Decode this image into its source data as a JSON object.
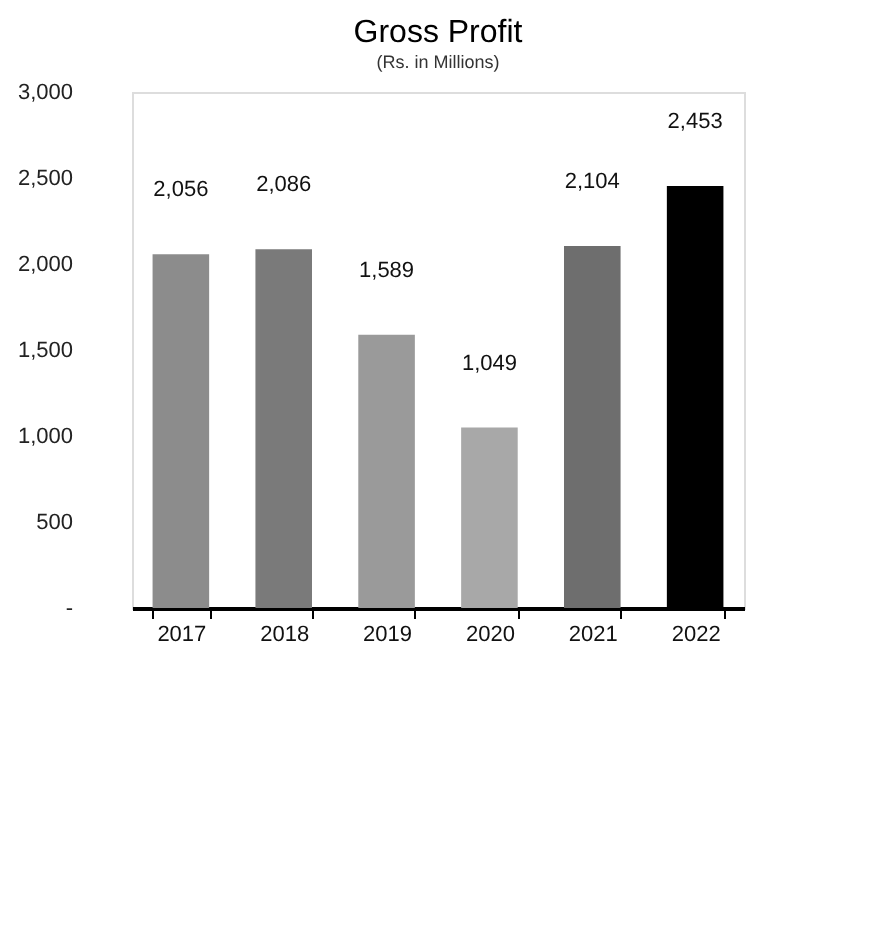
{
  "chart_data": {
    "type": "bar",
    "title": "Gross Profit",
    "subtitle": "(Rs. in Millions)",
    "categories": [
      "2017",
      "2018",
      "2019",
      "2020",
      "2021",
      "2022"
    ],
    "values": [
      2056,
      2086,
      1589,
      1049,
      2104,
      2453
    ],
    "colors": [
      "#8c8c8c",
      "#7a7a7a",
      "#9a9a9a",
      "#a8a8a8",
      "#6e6e6e",
      "#000000"
    ],
    "value_labels": [
      "2,056",
      "2,086",
      "1,589",
      "1,049",
      "2,104",
      "2,453"
    ],
    "ylim": [
      0,
      3000
    ],
    "yticks": [
      {
        "value": 0,
        "label": "-"
      },
      500,
      {
        "value": 1000,
        "label": "1,000"
      },
      {
        "value": 1500,
        "label": "1,500"
      },
      {
        "value": 2000,
        "label": "2,000"
      },
      {
        "value": 2500,
        "label": "2,500"
      },
      {
        "value": 3000,
        "label": "3,000"
      }
    ],
    "grid": false
  }
}
